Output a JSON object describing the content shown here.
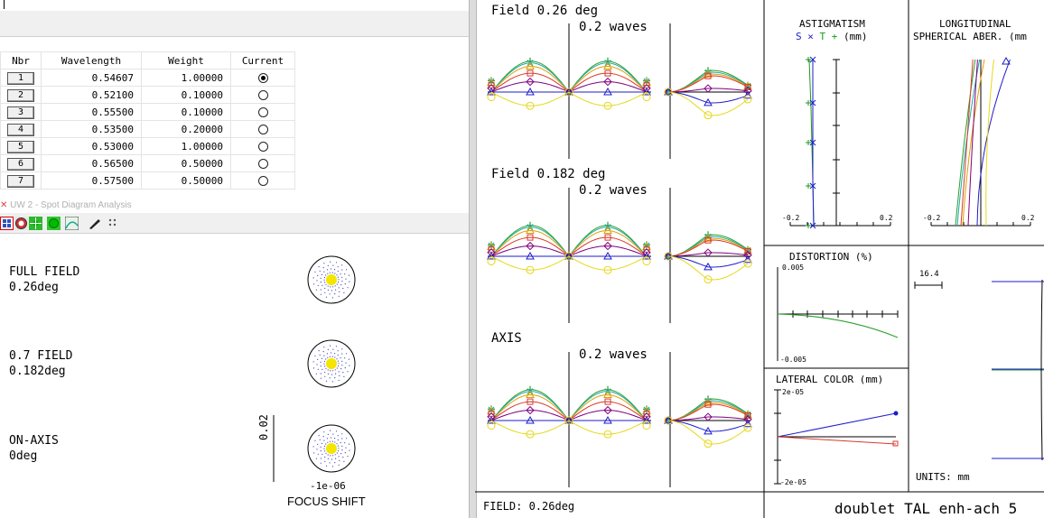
{
  "wavelength_table": {
    "headers": [
      "Nbr",
      "Wavelength",
      "Weight",
      "Current"
    ],
    "rows": [
      {
        "nbr": "1",
        "wavelength": "0.54607",
        "weight": "1.00000",
        "current": true
      },
      {
        "nbr": "2",
        "wavelength": "0.52100",
        "weight": "0.10000",
        "current": false
      },
      {
        "nbr": "3",
        "wavelength": "0.55500",
        "weight": "0.10000",
        "current": false
      },
      {
        "nbr": "4",
        "wavelength": "0.53500",
        "weight": "0.20000",
        "current": false
      },
      {
        "nbr": "5",
        "wavelength": "0.53000",
        "weight": "1.00000",
        "current": false
      },
      {
        "nbr": "6",
        "wavelength": "0.56500",
        "weight": "0.50000",
        "current": false
      },
      {
        "nbr": "7",
        "wavelength": "0.57500",
        "weight": "0.50000",
        "current": false
      }
    ]
  },
  "spot_window": {
    "title": "UW 2 - Spot Diagram Analysis",
    "toolbar_icons": [
      "grid-icon",
      "target-icon",
      "green-dot-icon",
      "green-circle-icon",
      "curve-icon",
      "pen-icon",
      "dots-icon"
    ],
    "fields": [
      {
        "line1": "FULL FIELD",
        "line2": "0.26deg"
      },
      {
        "line1": "0.7 FIELD",
        "line2": "0.182deg"
      },
      {
        "line1": "ON-AXIS",
        "line2": "0deg"
      }
    ],
    "scale_label": "0.02",
    "focus_value": "-1e-06",
    "focus_label": "FOCUS SHIFT"
  },
  "ray_fan": {
    "fields": [
      {
        "title": "Field 0.26 deg",
        "scale": "0.2 waves"
      },
      {
        "title": "Field 0.182 deg",
        "scale": "0.2 waves"
      },
      {
        "title": "AXIS",
        "scale": "0.2 waves"
      }
    ],
    "series_colors": [
      "#2ca02c",
      "#1faaaa",
      "#e0a000",
      "#d93a2b",
      "#800080",
      "#1c1ccc",
      "#e6d81a"
    ],
    "footer_label": "FIELD: 0.26deg"
  },
  "astigmatism": {
    "title": "ASTIGMATISM",
    "legend_s": "S",
    "legend_x": "×",
    "legend_t": "T",
    "legend_plus": "+",
    "units": "(mm)",
    "tick_left": "-0.2",
    "tick_right": "0.2"
  },
  "longitudinal": {
    "title1": "LONGITUDINAL",
    "title2": "SPHERICAL ABER. (mm",
    "tick_left": "-0.2",
    "tick_right": "0.2"
  },
  "distortion": {
    "title": "DISTORTION (%)",
    "top": "0.005",
    "bottom": "-0.005"
  },
  "lateral_color": {
    "title": "LATERAL COLOR (mm)",
    "top": "2e-05",
    "bottom": "-2e-05"
  },
  "lens_layout": {
    "scale": "16.4",
    "units": "UNITS: mm"
  },
  "footer_title": "doublet TAL enh-ach 5"
}
